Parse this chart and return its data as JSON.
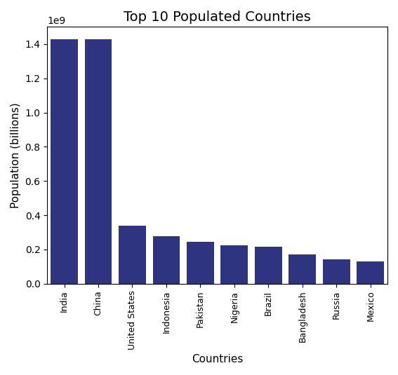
{
  "title": "Top 10 Populated Countries",
  "xlabel": "Countries",
  "ylabel": "Population (billions)",
  "countries": [
    "India",
    "China",
    "United States",
    "Indonesia",
    "Pakistan",
    "Nigeria",
    "Brazil",
    "Bangladesh",
    "Russia",
    "Mexico"
  ],
  "populations": [
    1428627663,
    1425671352,
    339996563,
    277534122,
    245209815,
    223804632,
    215313498,
    172954319,
    144444359,
    128455567
  ],
  "bar_color": "#2e3480",
  "figsize": [
    5.67,
    5.35
  ],
  "dpi": 100,
  "title_fontsize": 14,
  "label_fontsize": 11,
  "tick_fontsize": 9,
  "ylim_max": 1500000000.0
}
